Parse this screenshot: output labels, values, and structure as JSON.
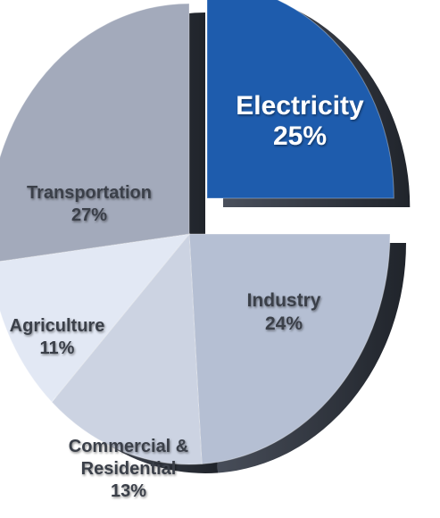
{
  "chart_data": {
    "type": "pie",
    "title": "",
    "slices": [
      {
        "name": "Electricity",
        "value": 25,
        "value_label": "25%",
        "color": "#1e5cad",
        "label_color": "#ffffff",
        "exploded": true
      },
      {
        "name": "Industry",
        "value": 24,
        "value_label": "24%",
        "color": "#b5bfd3",
        "label_color": "#3b3f4a",
        "exploded": false
      },
      {
        "name": "Commercial & Residential",
        "value": 13,
        "value_label": "13%",
        "color": "#ccd3e2",
        "label_color": "#3b3f4a",
        "exploded": false
      },
      {
        "name": "Agriculture",
        "value": 11,
        "value_label": "11%",
        "color": "#e2e8f4",
        "label_color": "#3b3f4a",
        "exploded": false
      },
      {
        "name": "Transportation",
        "value": 27,
        "value_label": "27%",
        "color": "#a3aabb",
        "label_color": "#3b3f4a",
        "exploded": false
      }
    ]
  }
}
